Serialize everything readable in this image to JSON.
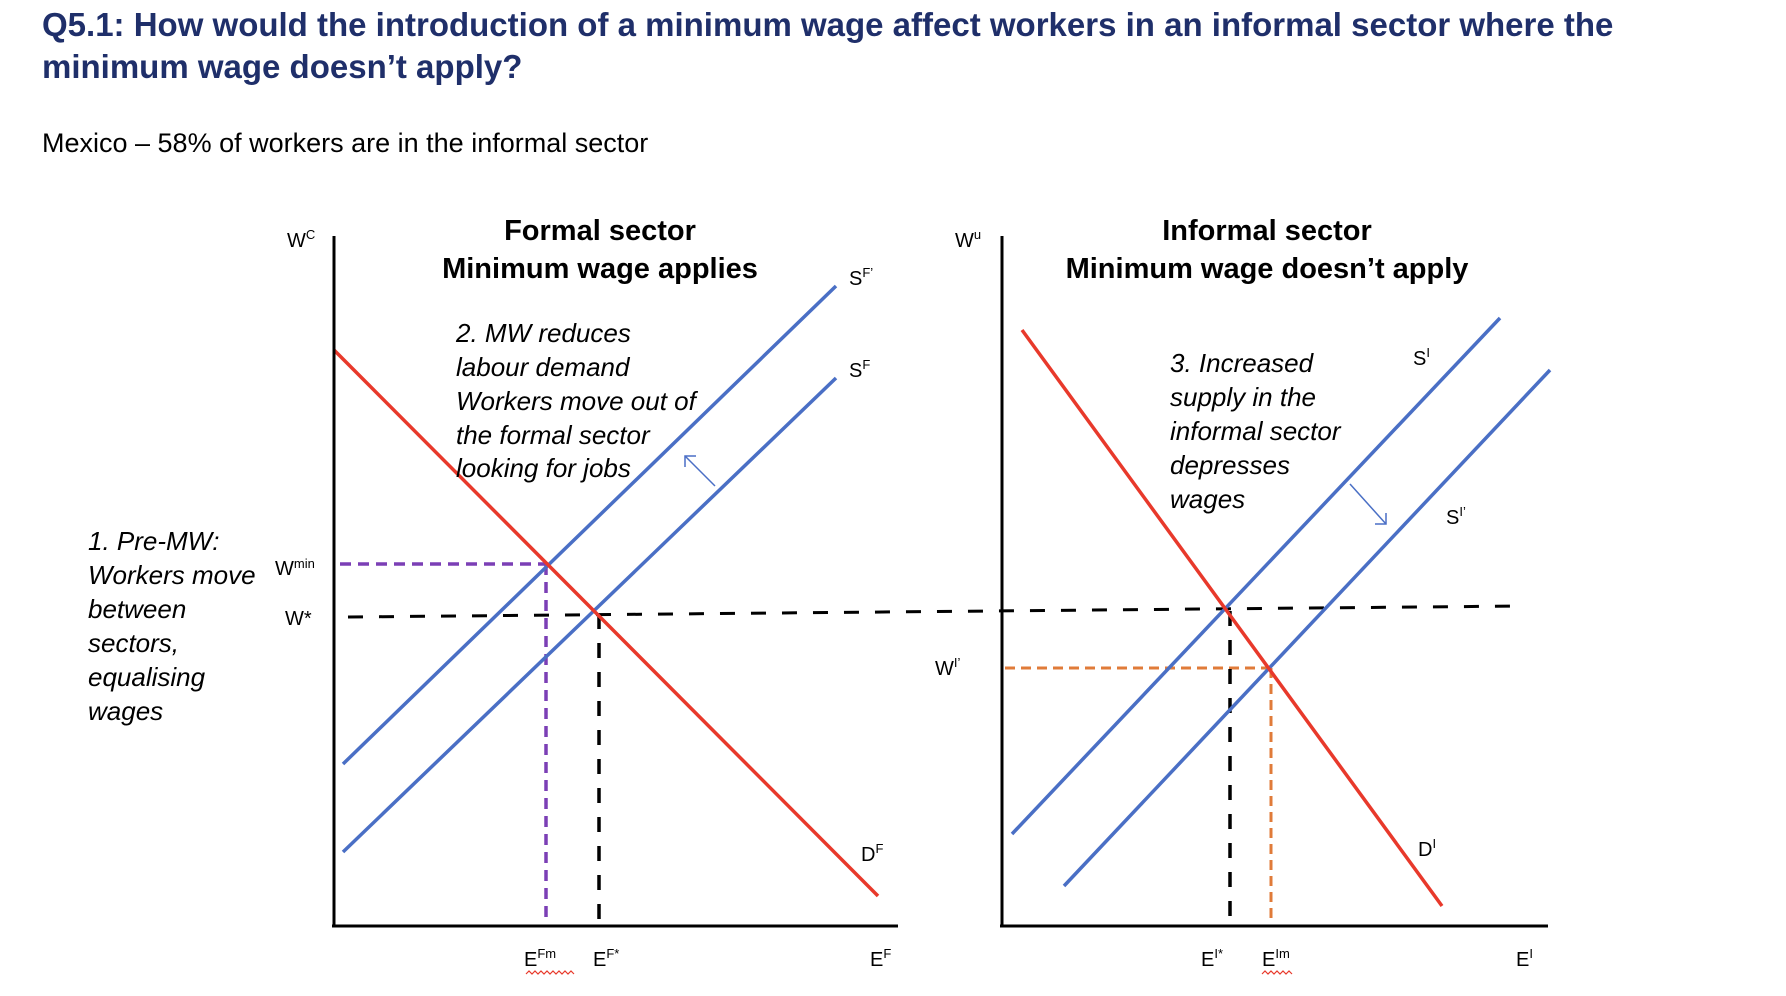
{
  "title": "Q5.1: How would the introduction of a minimum wage affect workers in an informal sector where the minimum wage doesn’t apply?",
  "subtitle": "Mexico – 58% of workers are in the informal sector",
  "formal": {
    "heading1": "Formal sector",
    "heading2": "Minimum wage applies",
    "y_axis": {
      "base": "W",
      "sup": "C"
    },
    "x_axis": {
      "base": "E",
      "sup": "F"
    },
    "supply_shifted": {
      "base": "S",
      "sup": "F’"
    },
    "supply": {
      "base": "S",
      "sup": "F"
    },
    "demand": {
      "base": "D",
      "sup": "F"
    },
    "wmin": {
      "base": "W",
      "sup": "min"
    },
    "wstar": "W*",
    "e_m": {
      "base": "E",
      "sup": "Fm"
    },
    "e_star": {
      "base": "E",
      "sup": "F*"
    },
    "note": [
      "2. MW reduces",
      "labour demand",
      "Workers move out of",
      "the formal sector",
      "looking for jobs"
    ]
  },
  "informal": {
    "heading1": "Informal sector",
    "heading2": "Minimum wage doesn’t apply",
    "y_axis": {
      "base": "W",
      "sup": "u"
    },
    "x_axis": {
      "base": "E",
      "sup": "I"
    },
    "supply": {
      "base": "S",
      "sup": "I"
    },
    "supply_shifted": {
      "base": "S",
      "sup": "I’"
    },
    "demand": {
      "base": "D",
      "sup": "I"
    },
    "w_prime": {
      "base": "W",
      "sup": "I’"
    },
    "e_star": {
      "base": "E",
      "sup": "I*"
    },
    "e_m": {
      "base": "E",
      "sup": "Im"
    },
    "note": [
      "3. Increased",
      "supply in the",
      "informal sector",
      "depresses",
      "wages"
    ]
  },
  "left_note": [
    "1. Pre-MW:",
    "Workers move",
    "between",
    "sectors,",
    "equalising",
    "wages"
  ],
  "colors": {
    "title": "#1f2f6a",
    "supply": "#4a6fc5",
    "demand": "#e8392b",
    "min_wage_guide": "#7b3fb5",
    "informal_wage_guide": "#e07b39",
    "equilibrium_guide": "#000000"
  }
}
